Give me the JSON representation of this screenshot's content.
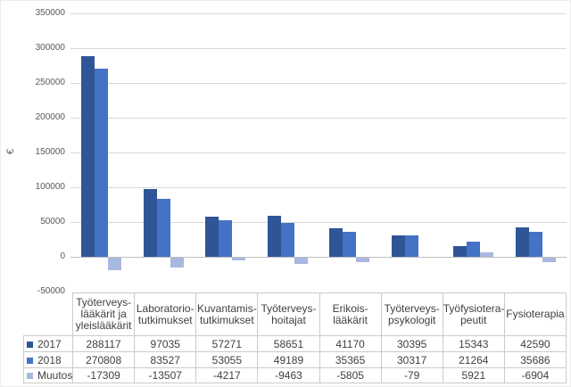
{
  "chart_data": {
    "type": "bar",
    "title": "",
    "ylabel": "€",
    "xlabel": "",
    "grid": true,
    "legend_position": "data-table-left-column",
    "categories": [
      "Työterveys-lääkärit ja yleislääkärit",
      "Laboratorio-tutkimukset",
      "Kuvantamis-tutkimukset",
      "Työterveys-hoitajat",
      "Erikois-lääkärit",
      "Työterveys-psykologit",
      "Työfysiotera-peutit",
      "Fysioterapia"
    ],
    "category_header_lines": [
      [
        "Työterveys-",
        "lääkärit ja",
        "yleislääkärit"
      ],
      [
        "Laboratorio-",
        "tutkimukset"
      ],
      [
        "Kuvantamis-",
        "tutkimukset"
      ],
      [
        "Työterveys-",
        "hoitajat"
      ],
      [
        "Erikois-",
        "lääkärit"
      ],
      [
        "Työterveys-",
        "psykologit"
      ],
      [
        "Työfysiotera-",
        "peutit"
      ],
      [
        "Fysioterapia"
      ]
    ],
    "series": [
      {
        "name": "2017",
        "color": "#2F5597",
        "values": [
          288117,
          97035,
          57271,
          58651,
          41170,
          30395,
          15343,
          42590
        ]
      },
      {
        "name": "2018",
        "color": "#4472C4",
        "values": [
          270808,
          83527,
          53055,
          49189,
          35365,
          30317,
          21264,
          35686
        ]
      },
      {
        "name": "Muutos",
        "color": "#A9B8E0",
        "values": [
          -17309,
          -13507,
          -4217,
          -9463,
          -5805,
          -79,
          5921,
          -6904
        ]
      }
    ],
    "y_axis": {
      "min": -50000,
      "max": 350000,
      "step": 50000,
      "tick_labels": [
        "350000",
        "300000",
        "250000",
        "200000",
        "150000",
        "100000",
        "50000",
        "0",
        "-50000"
      ]
    }
  },
  "colors": {
    "gridline": "#D9D9D9",
    "zero_line": "#BFBFBF",
    "table_border": "#CBCBCB",
    "axis_text": "#595959",
    "table_text": "#404040",
    "background": "#FFFFFF"
  }
}
